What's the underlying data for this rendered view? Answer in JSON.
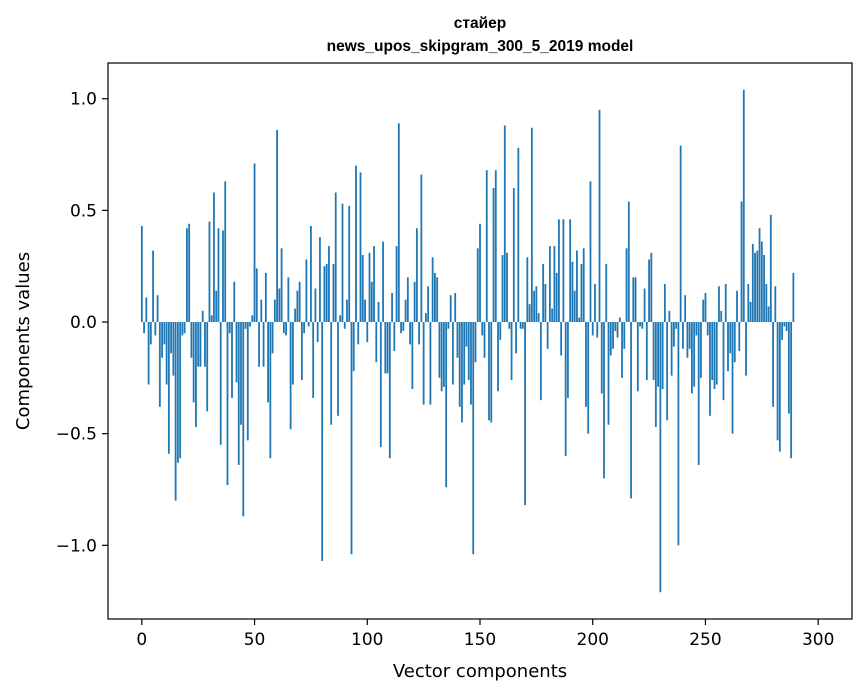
{
  "chart_data": {
    "type": "bar",
    "title": "стайер\nnews_upos_skipgram_300_5_2019 model",
    "title_lines": [
      "стайер",
      "news_upos_skipgram_300_5_2019 model"
    ],
    "xlabel": "Vector components",
    "ylabel": "Components values",
    "xlim": [
      -15,
      315
    ],
    "ylim": [
      -1.33,
      1.16
    ],
    "xticks": [
      0,
      50,
      100,
      150,
      200,
      250,
      300
    ],
    "xtick_labels": [
      "0",
      "50",
      "100",
      "150",
      "200",
      "250",
      "300"
    ],
    "yticks": [
      -1.0,
      -0.5,
      0.0,
      0.5,
      1.0
    ],
    "ytick_labels": [
      "−1.0",
      "−0.5",
      "0.0",
      "0.5",
      "1.0"
    ],
    "grid": false,
    "bar_color": "#1f77b4",
    "series": [
      {
        "values": [
          0.43,
          -0.05,
          0.11,
          -0.28,
          -0.1,
          0.32,
          -0.06,
          0.12,
          -0.38,
          -0.16,
          -0.1,
          -0.28,
          -0.59,
          -0.14,
          -0.24,
          -0.8,
          -0.63,
          -0.61,
          -0.06,
          -0.05,
          0.42,
          0.44,
          -0.16,
          -0.36,
          -0.47,
          -0.2,
          -0.2,
          0.05,
          -0.2,
          -0.4,
          0.45,
          0.03,
          0.58,
          0.14,
          0.42,
          -0.55,
          0.41,
          0.63,
          -0.73,
          -0.05,
          -0.34,
          0.18,
          -0.27,
          -0.64,
          -0.46,
          -0.87,
          -0.03,
          -0.53,
          -0.02,
          0.03,
          0.71,
          0.24,
          -0.2,
          0.1,
          -0.2,
          0.22,
          -0.36,
          -0.61,
          -0.14,
          0.1,
          0.86,
          0.15,
          0.33,
          -0.05,
          -0.06,
          0.2,
          -0.48,
          -0.28,
          0.06,
          0.14,
          0.18,
          -0.26,
          -0.05,
          0.28,
          -0.02,
          0.43,
          -0.34,
          0.15,
          -0.09,
          0.38,
          -1.07,
          0.25,
          0.26,
          0.34,
          -0.46,
          0.26,
          0.58,
          -0.42,
          0.03,
          0.53,
          -0.03,
          0.1,
          0.52,
          -1.04,
          -0.22,
          0.7,
          -0.1,
          0.67,
          0.3,
          0.1,
          -0.09,
          0.31,
          0.18,
          0.34,
          -0.18,
          0.09,
          -0.56,
          0.36,
          -0.23,
          -0.23,
          -0.61,
          0.13,
          -0.13,
          0.34,
          0.89,
          -0.05,
          -0.04,
          0.1,
          0.2,
          -0.1,
          -0.3,
          0.18,
          0.42,
          -0.1,
          0.66,
          -0.37,
          0.04,
          0.16,
          -0.37,
          0.29,
          0.22,
          0.2,
          -0.25,
          -0.31,
          -0.29,
          -0.74,
          -0.03,
          0.12,
          -0.28,
          0.13,
          -0.16,
          -0.38,
          -0.45,
          -0.28,
          -0.11,
          -0.26,
          -0.37,
          -1.04,
          -0.18,
          0.33,
          0.44,
          -0.06,
          -0.16,
          0.68,
          -0.44,
          -0.45,
          0.6,
          0.68,
          -0.31,
          -0.08,
          0.3,
          0.88,
          0.31,
          -0.03,
          -0.26,
          0.6,
          -0.14,
          0.78,
          -0.03,
          -0.03,
          -0.82,
          0.29,
          0.08,
          0.87,
          0.14,
          0.16,
          0.04,
          -0.35,
          0.26,
          0.17,
          -0.12,
          0.34,
          0.06,
          0.34,
          0.22,
          0.46,
          -0.15,
          0.46,
          -0.6,
          -0.34,
          0.46,
          0.27,
          0.14,
          0.32,
          0.02,
          0.26,
          0.33,
          -0.38,
          -0.5,
          0.63,
          -0.06,
          0.17,
          -0.07,
          0.95,
          -0.32,
          -0.7,
          0.26,
          -0.46,
          -0.15,
          -0.12,
          -0.04,
          -0.07,
          0.02,
          -0.25,
          -0.12,
          0.33,
          0.54,
          -0.79,
          0.2,
          0.2,
          -0.31,
          -0.02,
          -0.03,
          0.15,
          -0.26,
          0.28,
          0.31,
          -0.26,
          -0.47,
          -0.29,
          -1.21,
          -0.3,
          0.17,
          -0.44,
          0.05,
          -0.24,
          -0.11,
          -0.03,
          -1.0,
          0.79,
          -0.12,
          0.12,
          -0.16,
          -0.12,
          -0.32,
          -0.29,
          -0.06,
          -0.64,
          -0.25,
          0.1,
          0.13,
          -0.06,
          -0.42,
          -0.26,
          -0.3,
          -0.28,
          0.16,
          0.05,
          -0.35,
          0.17,
          -0.22,
          -0.14,
          -0.5,
          -0.18,
          0.14,
          -0.13,
          0.54,
          1.04,
          -0.24,
          0.17,
          0.09,
          0.35,
          0.31,
          0.32,
          0.42,
          0.36,
          0.3,
          0.17,
          0.07,
          0.48,
          -0.38,
          0.16,
          -0.53,
          -0.58,
          -0.08,
          -0.02,
          -0.04,
          -0.41,
          -0.61,
          0.22
        ]
      }
    ]
  }
}
